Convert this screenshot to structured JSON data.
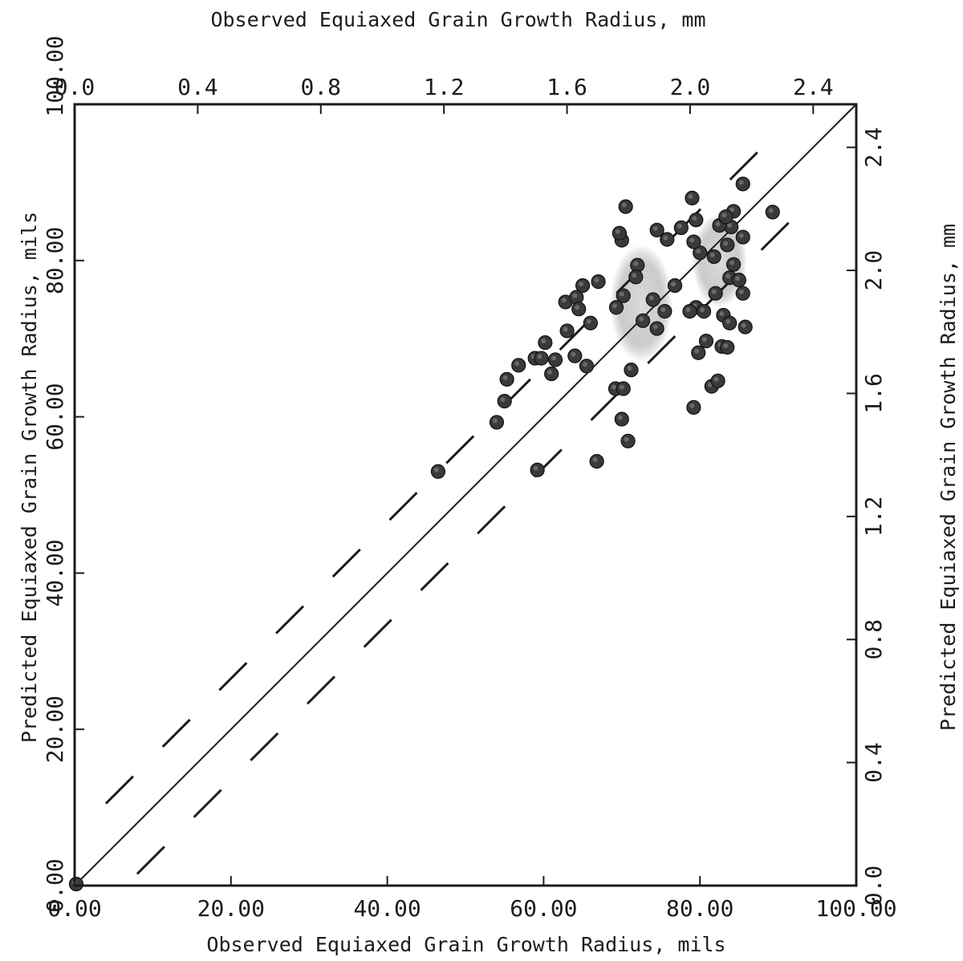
{
  "chart_data": {
    "type": "scatter",
    "title": "",
    "xlabel_bottom": "Observed Equiaxed Grain Growth Radius, mils",
    "xlabel_top": "Observed Equiaxed Grain Growth Radius, mm",
    "ylabel_left": "Predicted Equiaxed Grain Growth Radius, mils",
    "ylabel_right": "Predicted Equiaxed Grain Growth Radius, mm",
    "xlim": [
      0,
      100
    ],
    "ylim": [
      0,
      100
    ],
    "x_ticks": [
      {
        "value": 0,
        "label": "0.00"
      },
      {
        "value": 20,
        "label": "20.00"
      },
      {
        "value": 40,
        "label": "40.00"
      },
      {
        "value": 60,
        "label": "60.00"
      },
      {
        "value": 80,
        "label": "80.00"
      },
      {
        "value": 100,
        "label": "100.00"
      }
    ],
    "y_ticks": [
      {
        "value": 0,
        "label": "0.00"
      },
      {
        "value": 20,
        "label": "20.00"
      },
      {
        "value": 40,
        "label": "40.00"
      },
      {
        "value": 60,
        "label": "60.00"
      },
      {
        "value": 80,
        "label": "80.00"
      },
      {
        "value": 100,
        "label": "100.00"
      }
    ],
    "x_ticks_mm": [
      {
        "value": 0.0,
        "label": "0.0"
      },
      {
        "value": 0.4,
        "label": "0.4"
      },
      {
        "value": 0.8,
        "label": "0.8"
      },
      {
        "value": 1.2,
        "label": "1.2"
      },
      {
        "value": 1.6,
        "label": "1.6"
      },
      {
        "value": 2.0,
        "label": "2.0"
      },
      {
        "value": 2.4,
        "label": "2.4"
      }
    ],
    "y_ticks_mm": [
      {
        "value": 0.0,
        "label": "0.0"
      },
      {
        "value": 0.4,
        "label": "0.4"
      },
      {
        "value": 0.8,
        "label": "0.8"
      },
      {
        "value": 1.2,
        "label": "1.2"
      },
      {
        "value": 1.6,
        "label": "1.6"
      },
      {
        "value": 2.0,
        "label": "2.0"
      },
      {
        "value": 2.4,
        "label": "2.4"
      }
    ],
    "reference_lines": [
      {
        "name": "",
        "style": "solid",
        "points": [
          [
            0,
            0
          ],
          [
            100,
            100
          ]
        ]
      },
      {
        "name": "",
        "style": "dashed",
        "points": [
          [
            4,
            10.5
          ],
          [
            91,
            97.5
          ]
        ]
      },
      {
        "name": "",
        "style": "dashed",
        "points": [
          [
            8,
            1.5
          ],
          [
            91.5,
            85
          ]
        ]
      }
    ],
    "series": [
      {
        "name": "",
        "color": "#2a2a2a",
        "points": [
          [
            0.2,
            0.2
          ],
          [
            46.5,
            53
          ],
          [
            59.2,
            53.2
          ],
          [
            54,
            59.3
          ],
          [
            55,
            62
          ],
          [
            55.3,
            64.8
          ],
          [
            56.8,
            66.6
          ],
          [
            58.9,
            67.5
          ],
          [
            59.7,
            67.5
          ],
          [
            60.2,
            69.5
          ],
          [
            61.5,
            67.3
          ],
          [
            61,
            65.5
          ],
          [
            63,
            71
          ],
          [
            64,
            67.8
          ],
          [
            65.5,
            66.5
          ],
          [
            66,
            72
          ],
          [
            67,
            77.3
          ],
          [
            62.8,
            74.7
          ],
          [
            64.2,
            75.3
          ],
          [
            65,
            76.8
          ],
          [
            64.5,
            73.8
          ],
          [
            66.8,
            54.3
          ],
          [
            70,
            59.7
          ],
          [
            70.8,
            56.9
          ],
          [
            69.2,
            63.6
          ],
          [
            70.2,
            63.6
          ],
          [
            71.2,
            66
          ],
          [
            69.3,
            74
          ],
          [
            70.2,
            75.5
          ],
          [
            70,
            82.6
          ],
          [
            69.7,
            83.5
          ],
          [
            70.5,
            86.9
          ],
          [
            72,
            79.4
          ],
          [
            71.8,
            77.9
          ],
          [
            72.7,
            72.3
          ],
          [
            74,
            75
          ],
          [
            74.5,
            71.3
          ],
          [
            75.5,
            73.5
          ],
          [
            76.8,
            76.8
          ],
          [
            74.5,
            83.9
          ],
          [
            75.8,
            82.7
          ],
          [
            77.6,
            84.2
          ],
          [
            79,
            88
          ],
          [
            79.5,
            85.2
          ],
          [
            80,
            81
          ],
          [
            79.5,
            74
          ],
          [
            78.7,
            73.5
          ],
          [
            80.5,
            73.5
          ],
          [
            79.2,
            61.2
          ],
          [
            79.8,
            68.2
          ],
          [
            80.8,
            69.7
          ],
          [
            81.5,
            63.9
          ],
          [
            82.3,
            64.6
          ],
          [
            82.8,
            69
          ],
          [
            83.5,
            68.9
          ],
          [
            82,
            75.8
          ],
          [
            83,
            73
          ],
          [
            83.8,
            72
          ],
          [
            83.8,
            77.8
          ],
          [
            85,
            77.5
          ],
          [
            85.5,
            75.8
          ],
          [
            85.8,
            71.5
          ],
          [
            84.3,
            79.5
          ],
          [
            83.5,
            82
          ],
          [
            84,
            84.3
          ],
          [
            85.5,
            83
          ],
          [
            84.3,
            86.3
          ],
          [
            85.5,
            89.8
          ],
          [
            89.3,
            86.2
          ],
          [
            82.5,
            84.5
          ],
          [
            83.3,
            85.6
          ],
          [
            79.2,
            82.4
          ],
          [
            81.8,
            80.5
          ]
        ]
      }
    ],
    "dense_regions": [
      {
        "x": [
          68.5,
          76.5
        ],
        "y": [
          67,
          82
        ]
      },
      {
        "x": [
          79,
          86
        ],
        "y": [
          74,
          86
        ]
      }
    ],
    "grid": false,
    "legend": "none"
  }
}
